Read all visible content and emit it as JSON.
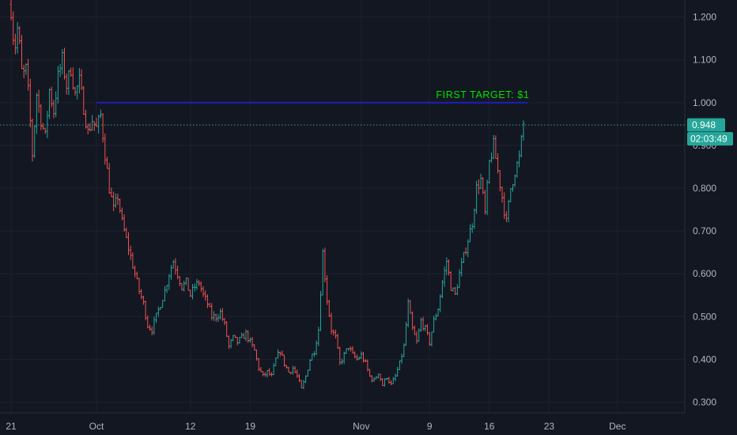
{
  "chart_data": {
    "type": "ohlc",
    "title": "",
    "xlabel": "",
    "ylabel": "",
    "ylim": [
      0.275,
      1.24
    ],
    "grid": true,
    "x_ticks": [
      {
        "label": "21",
        "pos": 0
      },
      {
        "label": "Oct",
        "pos": 10
      },
      {
        "label": "12",
        "pos": 21
      },
      {
        "label": "19",
        "pos": 28
      },
      {
        "label": "Nov",
        "pos": 41
      },
      {
        "label": "9",
        "pos": 49
      },
      {
        "label": "16",
        "pos": 56
      },
      {
        "label": "23",
        "pos": 63
      },
      {
        "label": "Dec",
        "pos": 71
      }
    ],
    "y_ticks": [
      "1.200",
      "1.100",
      "1.000",
      "0.900",
      "0.800",
      "0.700",
      "0.600",
      "0.500",
      "0.400",
      "0.300"
    ],
    "y_tick_values": [
      1.2,
      1.1,
      1.0,
      0.9,
      0.8,
      0.7,
      0.6,
      0.5,
      0.4,
      0.3
    ],
    "close_path": [
      [
        0.0,
        1.22
      ],
      [
        0.4,
        1.12
      ],
      [
        0.8,
        1.18
      ],
      [
        1.3,
        1.06
      ],
      [
        1.8,
        1.08
      ],
      [
        2.2,
        0.97
      ],
      [
        2.5,
        0.88
      ],
      [
        3.0,
        1.02
      ],
      [
        3.5,
        0.96
      ],
      [
        4.0,
        0.92
      ],
      [
        4.5,
        1.03
      ],
      [
        5.0,
        0.98
      ],
      [
        5.5,
        1.06
      ],
      [
        6.0,
        1.1
      ],
      [
        6.5,
        1.04
      ],
      [
        7.0,
        1.08
      ],
      [
        7.5,
        1.02
      ],
      [
        8.0,
        1.05
      ],
      [
        8.5,
        0.99
      ],
      [
        9.0,
        0.93
      ],
      [
        9.5,
        0.96
      ],
      [
        10.0,
        0.94
      ],
      [
        10.5,
        0.97
      ],
      [
        11.0,
        0.88
      ],
      [
        11.5,
        0.8
      ],
      [
        12.0,
        0.75
      ],
      [
        12.5,
        0.78
      ],
      [
        13.0,
        0.72
      ],
      [
        13.5,
        0.68
      ],
      [
        14.0,
        0.64
      ],
      [
        14.5,
        0.6
      ],
      [
        15.0,
        0.56
      ],
      [
        15.5,
        0.53
      ],
      [
        16.0,
        0.48
      ],
      [
        16.5,
        0.47
      ],
      [
        17.0,
        0.5
      ],
      [
        17.5,
        0.53
      ],
      [
        18.0,
        0.56
      ],
      [
        18.5,
        0.6
      ],
      [
        19.0,
        0.63
      ],
      [
        19.5,
        0.6
      ],
      [
        20.0,
        0.57
      ],
      [
        20.5,
        0.58
      ],
      [
        21.0,
        0.55
      ],
      [
        21.5,
        0.57
      ],
      [
        22.0,
        0.58
      ],
      [
        22.5,
        0.55
      ],
      [
        23.0,
        0.53
      ],
      [
        23.5,
        0.5
      ],
      [
        24.0,
        0.5
      ],
      [
        24.5,
        0.51
      ],
      [
        25.0,
        0.48
      ],
      [
        25.5,
        0.43
      ],
      [
        26.0,
        0.45
      ],
      [
        26.5,
        0.44
      ],
      [
        27.0,
        0.45
      ],
      [
        27.5,
        0.46
      ],
      [
        28.0,
        0.44
      ],
      [
        28.5,
        0.42
      ],
      [
        29.0,
        0.38
      ],
      [
        29.5,
        0.36
      ],
      [
        30.0,
        0.37
      ],
      [
        30.5,
        0.36
      ],
      [
        31.0,
        0.4
      ],
      [
        31.5,
        0.42
      ],
      [
        32.0,
        0.39
      ],
      [
        32.5,
        0.37
      ],
      [
        33.0,
        0.38
      ],
      [
        33.5,
        0.36
      ],
      [
        34.0,
        0.33
      ],
      [
        34.5,
        0.36
      ],
      [
        35.0,
        0.4
      ],
      [
        35.5,
        0.42
      ],
      [
        36.0,
        0.47
      ],
      [
        36.5,
        0.65
      ],
      [
        37.0,
        0.54
      ],
      [
        37.5,
        0.47
      ],
      [
        38.0,
        0.45
      ],
      [
        38.5,
        0.39
      ],
      [
        39.0,
        0.41
      ],
      [
        39.5,
        0.43
      ],
      [
        40.0,
        0.41
      ],
      [
        40.5,
        0.4
      ],
      [
        41.0,
        0.41
      ],
      [
        41.5,
        0.39
      ],
      [
        42.0,
        0.36
      ],
      [
        42.5,
        0.35
      ],
      [
        43.0,
        0.37
      ],
      [
        43.5,
        0.34
      ],
      [
        44.0,
        0.36
      ],
      [
        44.5,
        0.34
      ],
      [
        45.0,
        0.36
      ],
      [
        45.5,
        0.39
      ],
      [
        46.0,
        0.43
      ],
      [
        46.5,
        0.53
      ],
      [
        47.0,
        0.47
      ],
      [
        47.5,
        0.44
      ],
      [
        48.0,
        0.49
      ],
      [
        48.5,
        0.47
      ],
      [
        49.0,
        0.44
      ],
      [
        49.5,
        0.49
      ],
      [
        50.0,
        0.52
      ],
      [
        50.5,
        0.58
      ],
      [
        51.0,
        0.63
      ],
      [
        51.5,
        0.57
      ],
      [
        52.0,
        0.55
      ],
      [
        52.5,
        0.6
      ],
      [
        53.0,
        0.64
      ],
      [
        53.5,
        0.68
      ],
      [
        54.0,
        0.72
      ],
      [
        54.5,
        0.8
      ],
      [
        55.0,
        0.82
      ],
      [
        55.5,
        0.74
      ],
      [
        56.0,
        0.86
      ],
      [
        56.5,
        0.9
      ],
      [
        57.0,
        0.84
      ],
      [
        57.5,
        0.78
      ],
      [
        58.0,
        0.72
      ],
      [
        58.5,
        0.8
      ],
      [
        59.0,
        0.84
      ],
      [
        59.5,
        0.87
      ],
      [
        60.0,
        0.95
      ]
    ],
    "up_color": "#26a69a",
    "down_color": "#ef5350",
    "target_line": {
      "label": "FIRST TARGET: $1",
      "value": 1.0,
      "x_from": 10,
      "x_to": 60.5,
      "color": "#1e1eb4",
      "label_color": "#00e000"
    },
    "last_price": {
      "value": 0.948,
      "label": "0.948",
      "countdown": "02:03:49",
      "color": "#26a69a"
    }
  }
}
